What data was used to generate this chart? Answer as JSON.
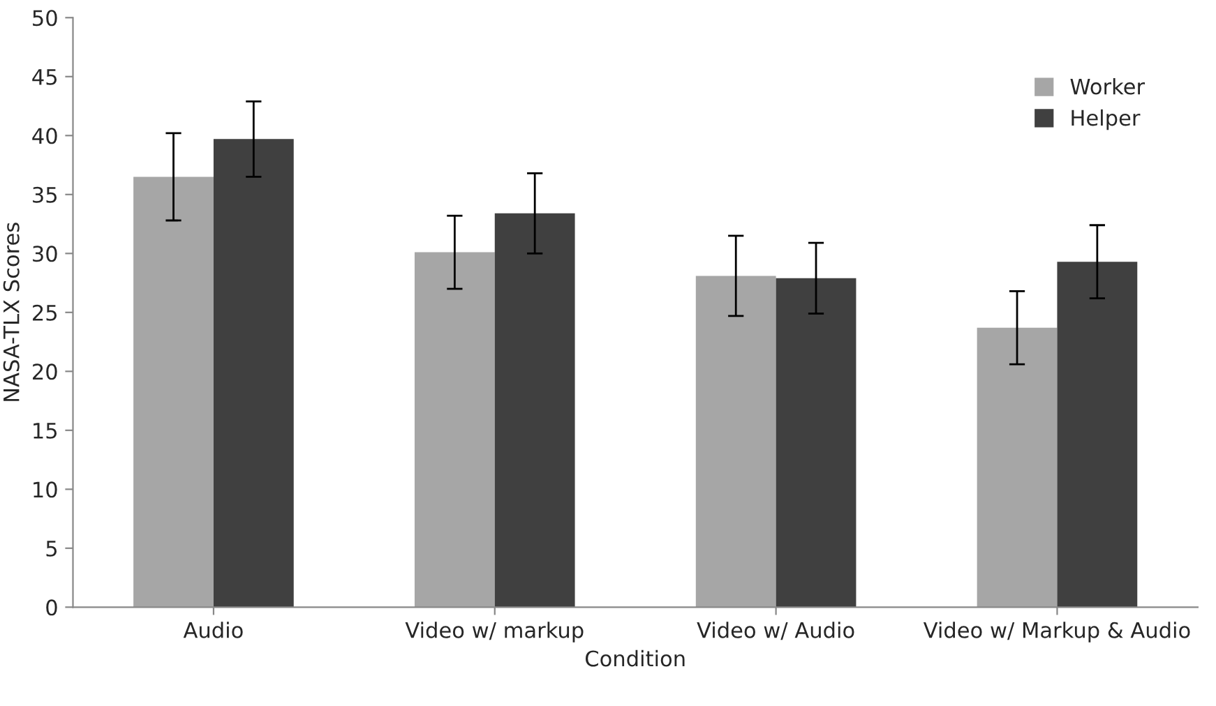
{
  "chart_data": {
    "type": "bar",
    "xlabel": "Condition",
    "ylabel": "NASA-TLX Scores",
    "categories": [
      "Audio",
      "Video w/ markup",
      "Video w/ Audio",
      "Video w/ Markup & Audio"
    ],
    "series": [
      {
        "name": "Worker",
        "color": "#a6a6a6",
        "values": [
          36.5,
          30.1,
          28.1,
          23.7
        ],
        "errors": [
          3.7,
          3.1,
          3.4,
          3.1
        ]
      },
      {
        "name": "Helper",
        "color": "#404040",
        "values": [
          39.7,
          33.4,
          27.9,
          29.3
        ],
        "errors": [
          3.2,
          3.4,
          3.0,
          3.1
        ]
      }
    ],
    "ylim": [
      0,
      50
    ],
    "yticks": [
      0,
      5,
      10,
      15,
      20,
      25,
      30,
      35,
      40,
      45,
      50
    ],
    "grid": false,
    "legend": "top right"
  }
}
